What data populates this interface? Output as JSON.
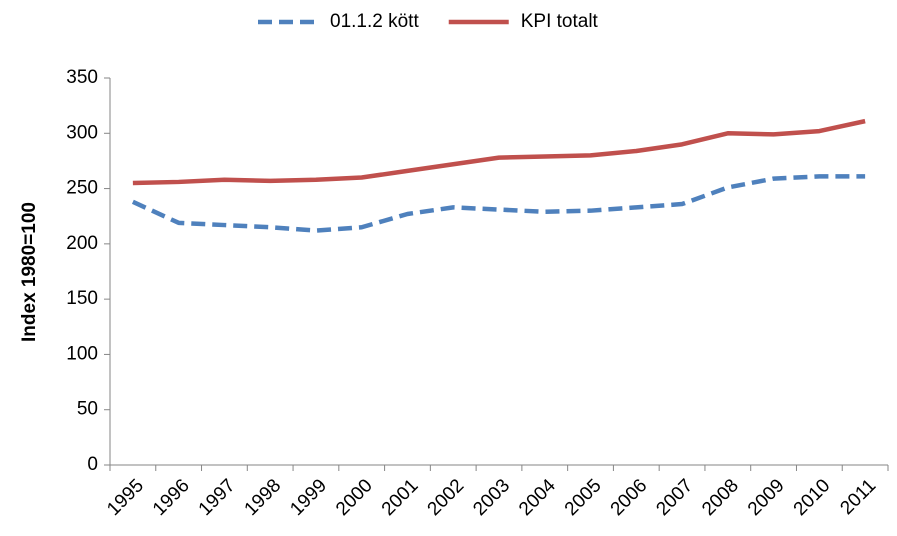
{
  "chart_data": {
    "type": "line",
    "y_label": "Index 1980=100",
    "categories": [
      "1995",
      "1996",
      "1997",
      "1998",
      "1999",
      "2000",
      "2001",
      "2002",
      "2003",
      "2004",
      "2005",
      "2006",
      "2007",
      "2008",
      "2009",
      "2010",
      "2011"
    ],
    "series": [
      {
        "name": "01.1.2 kött",
        "color": "#4f81bd",
        "dashed": true,
        "values": [
          238,
          219,
          217,
          215,
          212,
          215,
          227,
          233,
          231,
          229,
          230,
          233,
          236,
          251,
          259,
          261,
          261
        ]
      },
      {
        "name": "KPI totalt",
        "color": "#c0504d",
        "dashed": false,
        "values": [
          255,
          256,
          258,
          257,
          258,
          260,
          266,
          272,
          278,
          279,
          280,
          284,
          290,
          300,
          299,
          302,
          311
        ]
      }
    ],
    "ylim": [
      0,
      350
    ],
    "yticks": [
      0,
      50,
      100,
      150,
      200,
      250,
      300,
      350
    ],
    "grid": false,
    "legend": "top"
  }
}
